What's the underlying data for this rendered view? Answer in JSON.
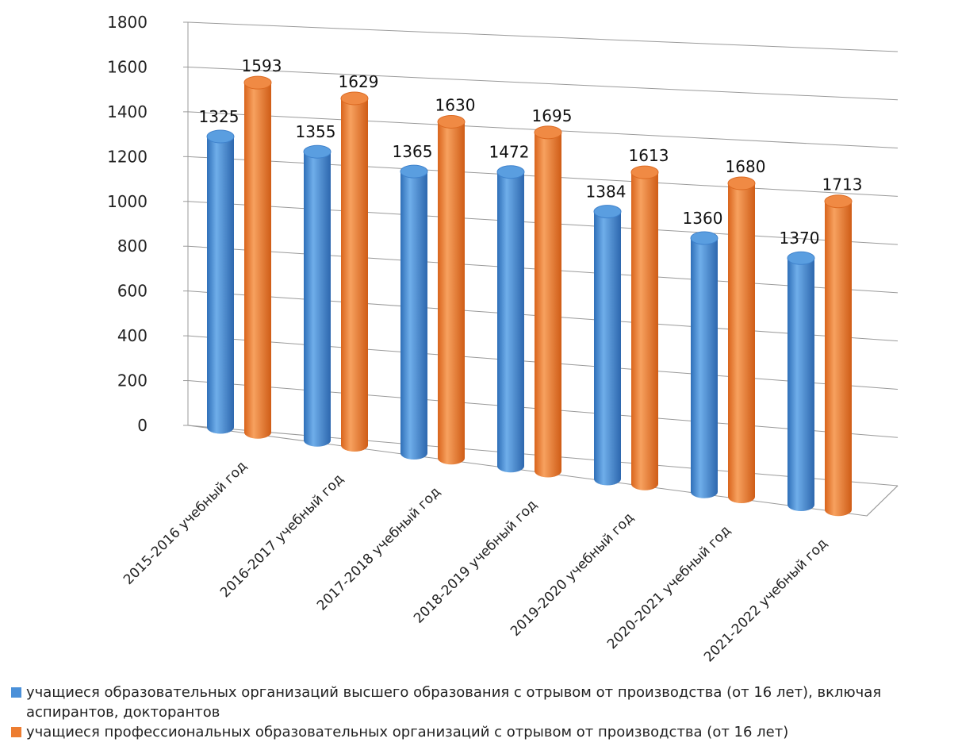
{
  "chart_data": {
    "type": "bar",
    "style": "3d-cylinder",
    "categories": [
      "2015-2016 учебный год",
      "2016-2017 учебный год",
      "2017-2018 учебный год",
      "2018-2019 учебный год",
      "2019-2020 учебный год",
      "2020-2021 учебный год",
      "2021-2022 учебный год"
    ],
    "series": [
      {
        "name": "учащиеся образовательных организаций высшего образования с отрывом от производства (от 16 лет), включая аспирантов, докторантов",
        "color": "#4A90D9",
        "values": [
          1325,
          1355,
          1365,
          1472,
          1384,
          1360,
          1370
        ]
      },
      {
        "name": "учащиеся профессиональных образовательных организаций с отрывом от производства (от 16 лет)",
        "color": "#ED7D31",
        "values": [
          1593,
          1629,
          1630,
          1695,
          1613,
          1680,
          1713
        ]
      }
    ],
    "yticks": [
      0,
      200,
      400,
      600,
      800,
      1000,
      1200,
      1400,
      1600,
      1800
    ],
    "ylim": [
      0,
      1800
    ],
    "grid": true,
    "legend_position": "bottom"
  }
}
